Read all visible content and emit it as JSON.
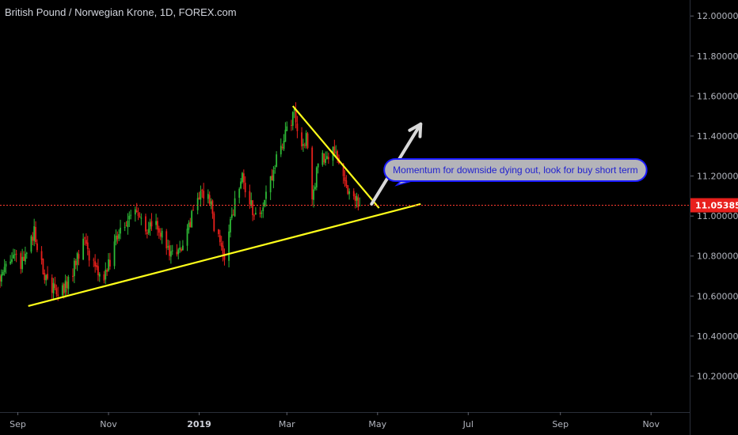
{
  "header": {
    "title": "British Pound / Norwegian Krone, 1D, FOREX.com"
  },
  "colors": {
    "background": "#000000",
    "up": "#2db836",
    "down": "#e8201c",
    "trendline": "#ffff1a",
    "current_price_line": "#ff3b30",
    "price_tag": "#e8201c",
    "note_fill": "#b4b4b9",
    "note_border": "#1a1aff",
    "note_text": "#1f1fcf",
    "arrow": "#d8d8d8",
    "axis_text": "#b2b5be"
  },
  "chart_data": {
    "type": "candlestick",
    "title": "British Pound / Norwegian Krone, 1D, FOREX.com",
    "ylim": [
      10.02,
      12.08
    ],
    "y_ticks": [
      "12.00000",
      "11.80000",
      "11.60000",
      "11.40000",
      "11.20000",
      "11.00000",
      "10.80000",
      "10.60000",
      "10.40000",
      "10.20000"
    ],
    "x_range": [
      "2018-08-20",
      "2019-11-27"
    ],
    "x_ticks": [
      {
        "label": "Sep",
        "date": "2018-09-01"
      },
      {
        "label": "Nov",
        "date": "2018-11-01"
      },
      {
        "label": "2019",
        "date": "2019-01-01",
        "bold": true
      },
      {
        "label": "Mar",
        "date": "2019-03-01"
      },
      {
        "label": "May",
        "date": "2019-05-01"
      },
      {
        "label": "Jul",
        "date": "2019-07-01"
      },
      {
        "label": "Sep",
        "date": "2019-09-01"
      },
      {
        "label": "Nov",
        "date": "2019-11-01"
      }
    ],
    "current_price": 11.05385,
    "current_price_label": "11.05385",
    "close_path": [
      {
        "date": "2018-08-20",
        "close": 10.7
      },
      {
        "date": "2018-08-28",
        "close": 10.8
      },
      {
        "date": "2018-09-05",
        "close": 10.76
      },
      {
        "date": "2018-09-12",
        "close": 10.92
      },
      {
        "date": "2018-09-18",
        "close": 10.72
      },
      {
        "date": "2018-09-28",
        "close": 10.6
      },
      {
        "date": "2018-10-08",
        "close": 10.72
      },
      {
        "date": "2018-10-15",
        "close": 10.88
      },
      {
        "date": "2018-10-22",
        "close": 10.76
      },
      {
        "date": "2018-10-30",
        "close": 10.7
      },
      {
        "date": "2018-11-05",
        "close": 10.86
      },
      {
        "date": "2018-11-12",
        "close": 10.96
      },
      {
        "date": "2018-11-18",
        "close": 11.05
      },
      {
        "date": "2018-11-25",
        "close": 10.92
      },
      {
        "date": "2018-12-02",
        "close": 10.98
      },
      {
        "date": "2018-12-09",
        "close": 10.86
      },
      {
        "date": "2018-12-16",
        "close": 10.78
      },
      {
        "date": "2018-12-23",
        "close": 10.92
      },
      {
        "date": "2018-12-31",
        "close": 11.08
      },
      {
        "date": "2019-01-07",
        "close": 11.12
      },
      {
        "date": "2019-01-12",
        "close": 10.92
      },
      {
        "date": "2019-01-18",
        "close": 10.8
      },
      {
        "date": "2019-01-23",
        "close": 11.0
      },
      {
        "date": "2019-01-30",
        "close": 11.2
      },
      {
        "date": "2019-02-05",
        "close": 11.05
      },
      {
        "date": "2019-02-10",
        "close": 10.98
      },
      {
        "date": "2019-02-16",
        "close": 11.12
      },
      {
        "date": "2019-02-22",
        "close": 11.28
      },
      {
        "date": "2019-02-28",
        "close": 11.42
      },
      {
        "date": "2019-03-06",
        "close": 11.5
      },
      {
        "date": "2019-03-10",
        "close": 11.34
      },
      {
        "date": "2019-03-14",
        "close": 11.4
      },
      {
        "date": "2019-03-18",
        "close": 11.06
      },
      {
        "date": "2019-03-23",
        "close": 11.32
      },
      {
        "date": "2019-03-29",
        "close": 11.26
      },
      {
        "date": "2019-04-03",
        "close": 11.35
      },
      {
        "date": "2019-04-09",
        "close": 11.16
      },
      {
        "date": "2019-04-14",
        "close": 11.1
      },
      {
        "date": "2019-04-19",
        "close": 11.05
      }
    ],
    "trendlines": [
      {
        "name": "support",
        "from": {
          "date": "2018-09-08",
          "price": 10.55
        },
        "to": {
          "date": "2019-05-30",
          "price": 11.06
        }
      },
      {
        "name": "resistance",
        "from": {
          "date": "2019-03-05",
          "price": 11.55
        },
        "to": {
          "date": "2019-05-02",
          "price": 11.04
        }
      }
    ],
    "arrow": {
      "from": {
        "date": "2019-04-27",
        "price": 11.06
      },
      "to": {
        "date": "2019-05-30",
        "price": 11.46
      }
    },
    "annotation": {
      "text": "Momentum for downside dying out, look for buy short term",
      "anchor": {
        "date": "2019-05-06",
        "price": 11.23
      },
      "pointer": {
        "date": "2019-04-30",
        "price": 11.17
      }
    }
  }
}
